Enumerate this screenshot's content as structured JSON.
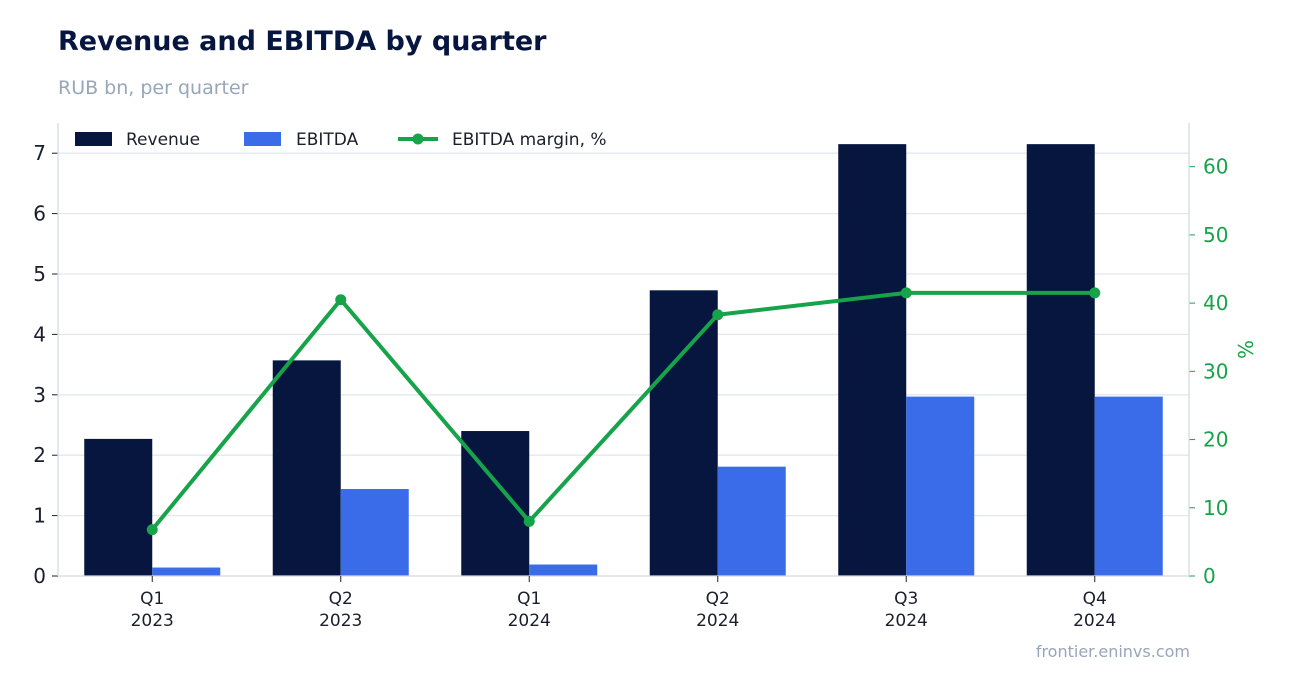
{
  "title": "Revenue and EBITDA by quarter",
  "subtitle": "RUB bn, per quarter",
  "source": "frontier.eninvs.com",
  "colors": {
    "revenue": "#06163f",
    "ebitda": "#3a6be8",
    "margin": "#16a34a",
    "grid": "#e3e8ef",
    "axis": "#d4dbe3",
    "text": "#1a1f2b",
    "title": "#06163f",
    "muted": "#98a6b9"
  },
  "chart_data": {
    "type": "bar",
    "categories": [
      [
        "Q1",
        "2023"
      ],
      [
        "Q2",
        "2023"
      ],
      [
        "Q1",
        "2024"
      ],
      [
        "Q2",
        "2024"
      ],
      [
        "Q3",
        "2024"
      ],
      [
        "Q4",
        "2024"
      ]
    ],
    "series": [
      {
        "name": "Revenue",
        "type": "bar",
        "axis": "left",
        "values": [
          2.27,
          3.57,
          2.4,
          4.73,
          7.15,
          7.15
        ]
      },
      {
        "name": "EBITDA",
        "type": "bar",
        "axis": "left",
        "values": [
          0.14,
          1.44,
          0.19,
          1.81,
          2.97,
          2.97
        ]
      },
      {
        "name": "EBITDA margin, %",
        "type": "line",
        "axis": "right",
        "values": [
          6.8,
          40.5,
          8.0,
          38.3,
          41.5,
          41.5
        ]
      }
    ],
    "xlabel": "",
    "ylabel": "",
    "y2label": "%",
    "ylim": [
      0,
      7.5
    ],
    "y2lim": [
      0,
      66.4
    ],
    "yticks": [
      0,
      1,
      2,
      3,
      4,
      5,
      6,
      7
    ],
    "y2ticks": [
      0,
      10,
      20,
      30,
      40,
      50,
      60
    ],
    "grid": true,
    "legend_position": "top-left"
  }
}
